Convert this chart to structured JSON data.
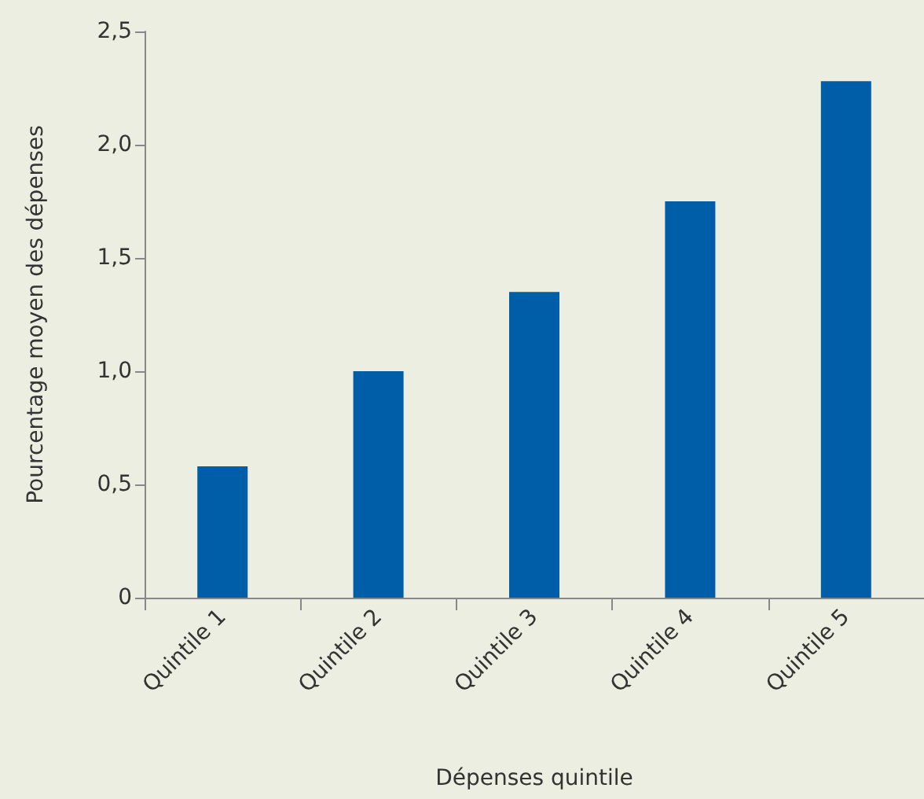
{
  "chart_data": {
    "type": "bar",
    "xlabel": "Dépenses quintile",
    "ylabel": "Pourcentage moyen des dépenses",
    "categories": [
      "Quintile 1",
      "Quintile 2",
      "Quintile 3",
      "Quintile 4",
      "Quintile 5"
    ],
    "values": [
      0.58,
      1.0,
      1.35,
      1.75,
      2.28
    ],
    "color": "#005da8",
    "ylim": [
      0,
      2.5
    ],
    "yticks": [
      0,
      {
        "value": 0.5,
        "label": "0,5"
      },
      {
        "value": 1,
        "label": "1,0"
      },
      {
        "value": 1.5,
        "label": "1,5"
      },
      {
        "value": 2,
        "label": "2,0"
      },
      {
        "value": 2.5,
        "label": "2,5"
      }
    ],
    "grid": false
  }
}
